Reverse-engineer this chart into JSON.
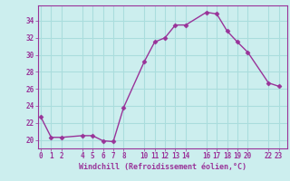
{
  "x": [
    0,
    1,
    2,
    4,
    5,
    6,
    7,
    8,
    10,
    11,
    12,
    13,
    14,
    16,
    17,
    18,
    19,
    20,
    22,
    23
  ],
  "y": [
    22.7,
    20.3,
    20.3,
    20.5,
    20.5,
    19.9,
    19.8,
    23.8,
    29.2,
    31.5,
    32.0,
    33.5,
    33.5,
    35.0,
    34.8,
    32.8,
    31.5,
    30.3,
    26.7,
    26.3
  ],
  "xticks": [
    0,
    1,
    2,
    4,
    5,
    6,
    7,
    8,
    10,
    11,
    12,
    13,
    14,
    16,
    17,
    18,
    19,
    20,
    22,
    23
  ],
  "xtick_labels": [
    "0",
    "1",
    "2",
    "4",
    "5",
    "6",
    "7",
    "8",
    "10",
    "11",
    "12",
    "13",
    "14",
    "16",
    "17",
    "18",
    "19",
    "20",
    "22",
    "23"
  ],
  "yticks": [
    20,
    22,
    24,
    26,
    28,
    30,
    32,
    34
  ],
  "ylim": [
    19.0,
    35.8
  ],
  "xlim": [
    -0.3,
    23.8
  ],
  "xlabel": "Windchill (Refroidissement éolien,°C)",
  "line_color": "#993399",
  "marker_color": "#993399",
  "bg_color": "#cceeee",
  "grid_color": "#aadddd",
  "tick_color": "#993399",
  "label_color": "#993399"
}
